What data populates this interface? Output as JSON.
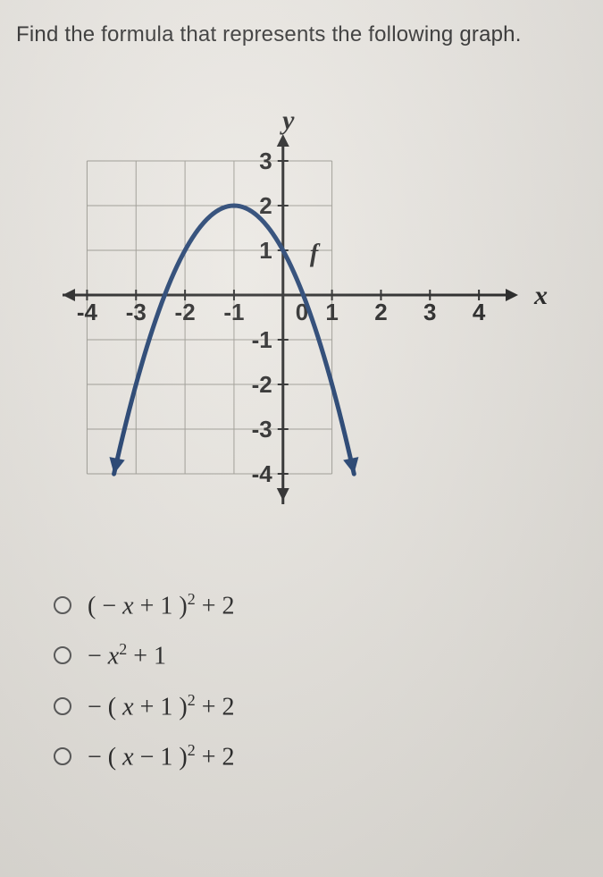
{
  "question": "Find the formula that represents the following graph.",
  "graph": {
    "type": "parabola",
    "x_axis_label": "x",
    "y_axis_label": "y",
    "curve_label": "f",
    "x_ticks": [
      -4,
      -3,
      -2,
      -1,
      0,
      1,
      2,
      3,
      4
    ],
    "y_ticks": [
      -4,
      -3,
      -2,
      -1,
      1,
      2,
      3
    ],
    "xlim": [
      -4.5,
      4.8
    ],
    "ylim": [
      -4.6,
      3.6
    ],
    "grid_xlim": [
      -4,
      1
    ],
    "grid_ylim": [
      -4,
      3
    ],
    "origin_label": "0",
    "curve": {
      "vertex": [
        -1,
        2
      ],
      "a": -1,
      "x_start": -3.45,
      "x_end": 1.45,
      "color": "#1a3a6b",
      "width": 5
    },
    "axis_color": "#222222",
    "axis_width": 3,
    "grid_color": "#9a9890",
    "grid_width": 1,
    "background_color": "#e8e6e0",
    "label_fontsize": 30,
    "tick_fontsize": 26,
    "arrow_size": 10,
    "curve_arrow_size": 11
  },
  "options": [
    {
      "html": "( − <i>x</i> + 1 )<sup>2</sup> + 2"
    },
    {
      "html": "− <i>x</i><sup>2</sup> + 1"
    },
    {
      "html": "− ( <i>x</i> + 1 )<sup>2</sup> + 2"
    },
    {
      "html": "− ( <i>x</i> − 1 )<sup>2</sup> + 2"
    }
  ]
}
